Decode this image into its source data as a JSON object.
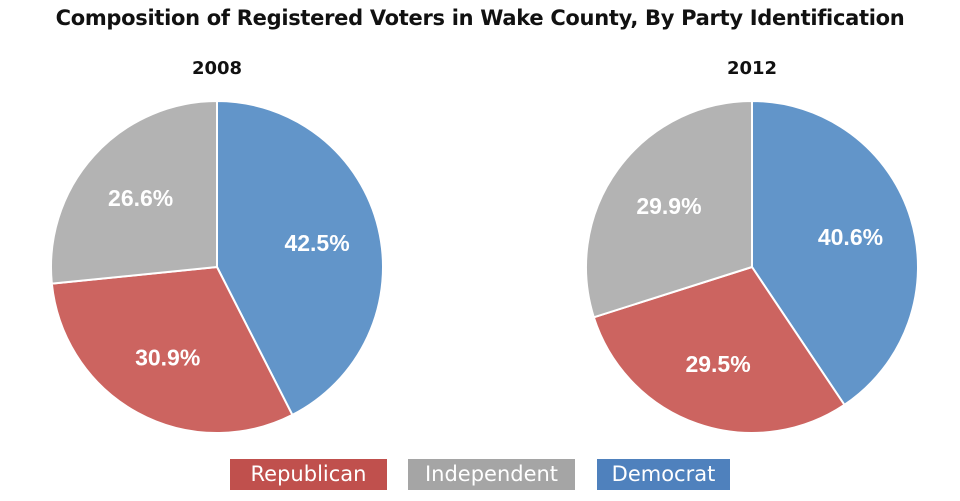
{
  "chart_data": [
    {
      "type": "pie",
      "title": "Composition of Registered Voters in Wake County, By Party Identification",
      "subtitle": "2008",
      "slices": [
        {
          "name": "Democrat",
          "value": 42.5,
          "label": "42.5%"
        },
        {
          "name": "Republican",
          "value": 30.9,
          "label": "30.9%"
        },
        {
          "name": "Independent",
          "value": 26.6,
          "label": "26.6%"
        }
      ]
    },
    {
      "type": "pie",
      "subtitle": "2012",
      "slices": [
        {
          "name": "Democrat",
          "value": 40.6,
          "label": "40.6%"
        },
        {
          "name": "Republican",
          "value": 29.5,
          "label": "29.5%"
        },
        {
          "name": "Independent",
          "value": 29.9,
          "label": "29.9%"
        }
      ]
    }
  ],
  "legend": {
    "position": "bottom",
    "items": [
      {
        "name": "Republican",
        "color": "#C0504D"
      },
      {
        "name": "Independent",
        "color": "#A5A5A5"
      },
      {
        "name": "Democrat",
        "color": "#4F81BD"
      }
    ]
  },
  "colors": {
    "Democrat": "#6295C9",
    "Republican": "#CC6460",
    "Independent": "#B3B3B3"
  }
}
